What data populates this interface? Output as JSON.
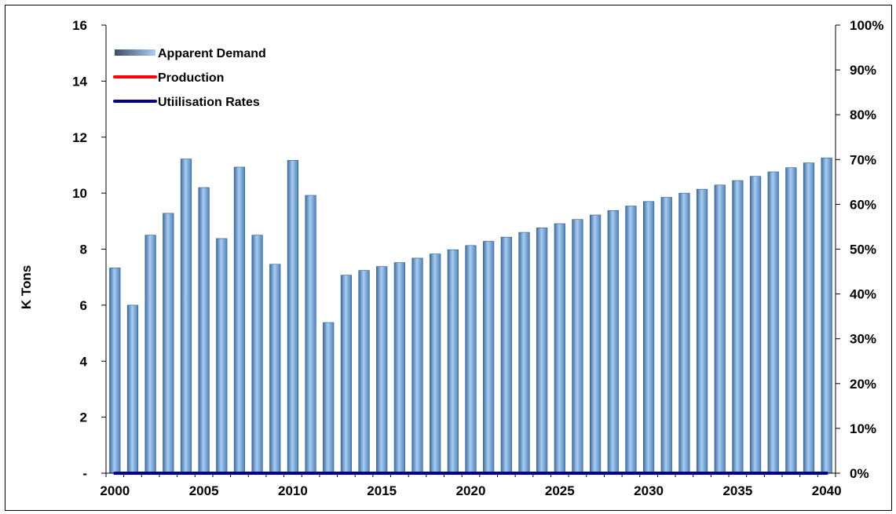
{
  "chart_data": {
    "type": "bar",
    "ylabel": "K Tons",
    "ylim": [
      0,
      16
    ],
    "y_ticks": [
      "-",
      "2",
      "4",
      "6",
      "8",
      "10",
      "12",
      "14",
      "16"
    ],
    "y2lim": [
      0,
      100
    ],
    "y2_ticks": [
      "0%",
      "10%",
      "20%",
      "30%",
      "40%",
      "50%",
      "60%",
      "70%",
      "80%",
      "90%",
      "100%"
    ],
    "x_tick_labels": [
      "2000",
      "2005",
      "2010",
      "2015",
      "2020",
      "2025",
      "2030",
      "2035",
      "2040"
    ],
    "categories": [
      2000,
      2001,
      2002,
      2003,
      2004,
      2005,
      2006,
      2007,
      2008,
      2009,
      2010,
      2011,
      2012,
      2013,
      2014,
      2015,
      2016,
      2017,
      2018,
      2019,
      2020,
      2021,
      2022,
      2023,
      2024,
      2025,
      2026,
      2027,
      2028,
      2029,
      2030,
      2031,
      2032,
      2033,
      2034,
      2035,
      2036,
      2037,
      2038,
      2039,
      2040
    ],
    "series": [
      {
        "name": "Apparent Demand",
        "type": "bar",
        "axis": "left",
        "color": "#7aa7d6",
        "values": [
          7.33,
          6.0,
          8.5,
          9.28,
          11.22,
          10.2,
          8.38,
          10.93,
          8.5,
          7.46,
          11.17,
          9.92,
          5.38,
          7.07,
          7.24,
          7.38,
          7.52,
          7.68,
          7.83,
          7.98,
          8.13,
          8.28,
          8.43,
          8.6,
          8.76,
          8.91,
          9.06,
          9.22,
          9.38,
          9.54,
          9.7,
          9.85,
          10.0,
          10.14,
          10.29,
          10.45,
          10.6,
          10.76,
          10.91,
          11.08,
          11.26
        ]
      },
      {
        "name": "Production",
        "type": "line",
        "axis": "left",
        "color": "#ff0000",
        "values": [
          0,
          0,
          0,
          0,
          0,
          0,
          0,
          0,
          0,
          0,
          0,
          0,
          0,
          0,
          0,
          0,
          0,
          0,
          0,
          0,
          0,
          0,
          0,
          0,
          0,
          0,
          0,
          0,
          0,
          0,
          0,
          0,
          0,
          0,
          0,
          0,
          0,
          0,
          0,
          0,
          0
        ]
      },
      {
        "name": "Utiilisation Rates",
        "type": "line",
        "axis": "right",
        "color": "#00008b",
        "values": [
          0,
          0,
          0,
          0,
          0,
          0,
          0,
          0,
          0,
          0,
          0,
          0,
          0,
          0,
          0,
          0,
          0,
          0,
          0,
          0,
          0,
          0,
          0,
          0,
          0,
          0,
          0,
          0,
          0,
          0,
          0,
          0,
          0,
          0,
          0,
          0,
          0,
          0,
          0,
          0,
          0
        ]
      }
    ],
    "legend_position": "top-left",
    "grid": false
  }
}
